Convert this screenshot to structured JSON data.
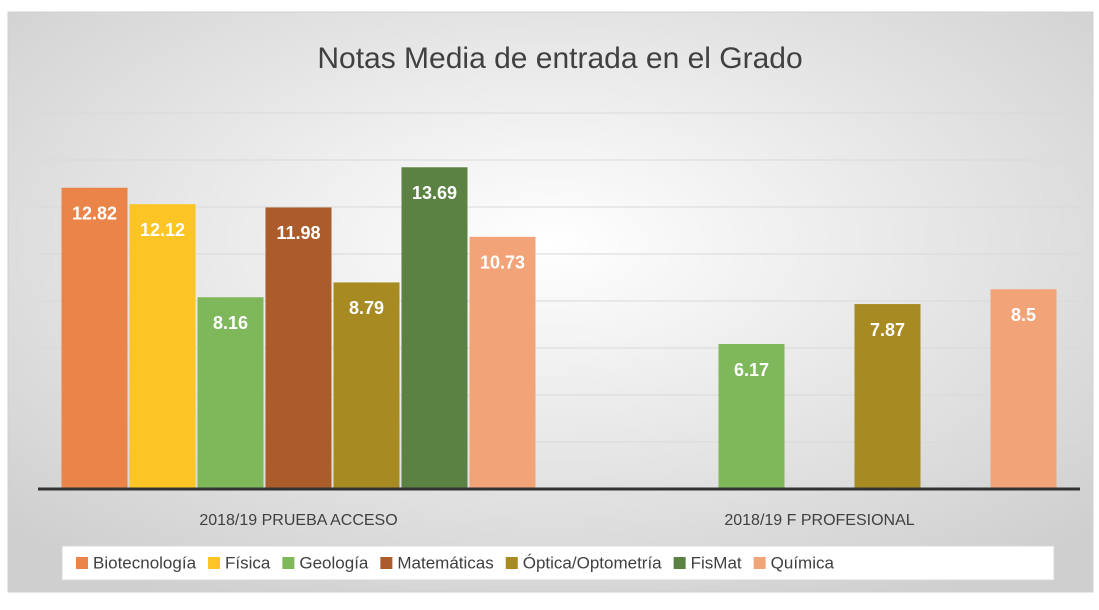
{
  "chart_data": {
    "type": "bar",
    "title": "Notas Media de entrada en el Grado",
    "categories": [
      "2018/19 PRUEBA ACCESO",
      "2018/19 F PROFESIONAL"
    ],
    "series": [
      {
        "name": "Biotecnología",
        "color": "#ea8449",
        "values": [
          12.82,
          null
        ]
      },
      {
        "name": "Física",
        "color": "#fcc425",
        "values": [
          12.12,
          null
        ]
      },
      {
        "name": "Geología",
        "color": "#7fb85b",
        "values": [
          8.16,
          6.17
        ]
      },
      {
        "name": "Matemáticas",
        "color": "#ac5b2a",
        "values": [
          11.98,
          null
        ]
      },
      {
        "name": "Óptica/Optometría",
        "color": "#a78a22",
        "values": [
          8.79,
          7.87
        ]
      },
      {
        "name": "FisMat",
        "color": "#5b8243",
        "values": [
          13.69,
          null
        ]
      },
      {
        "name": "Química",
        "color": "#f3a378",
        "values": [
          10.73,
          8.5
        ]
      }
    ],
    "ylim": [
      0,
      16
    ],
    "yticks": [
      0,
      2,
      4,
      6,
      8,
      10,
      12,
      14,
      16
    ],
    "grid": true
  }
}
